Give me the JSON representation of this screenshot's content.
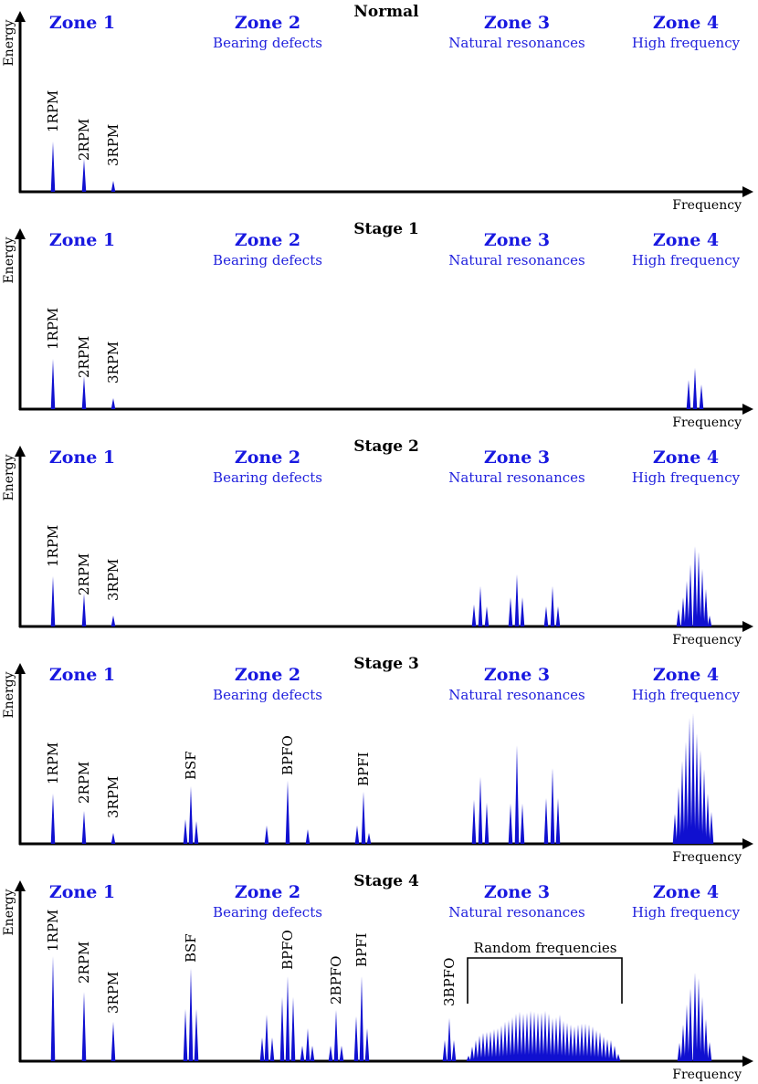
{
  "axis": {
    "x_label": "Frequency",
    "y_label": "Energy"
  },
  "zones": [
    {
      "title": "Zone 1",
      "subtitle": ""
    },
    {
      "title": "Zone 2",
      "subtitle": "Bearing defects"
    },
    {
      "title": "Zone 3",
      "subtitle": "Natural resonances"
    },
    {
      "title": "Zone 4",
      "subtitle": "High frequency"
    }
  ],
  "panels": [
    {
      "title": "Normal",
      "labels": [
        "1RPM",
        "2RPM",
        "3RPM"
      ],
      "peaks": [
        [
          58,
          0.55
        ],
        [
          92,
          0.36
        ],
        [
          124,
          0.12
        ]
      ]
    },
    {
      "title": "Stage 1",
      "labels": [
        "1RPM",
        "2RPM",
        "3RPM"
      ],
      "peaks": [
        [
          58,
          0.55
        ],
        [
          92,
          0.36
        ],
        [
          124,
          0.12
        ],
        [
          754,
          0.32
        ],
        [
          761,
          0.45
        ],
        [
          768,
          0.27
        ]
      ]
    },
    {
      "title": "Stage 2",
      "labels": [
        "1RPM",
        "2RPM",
        "3RPM"
      ],
      "peaks": [
        [
          58,
          0.55
        ],
        [
          92,
          0.36
        ],
        [
          124,
          0.12
        ],
        [
          519,
          0.24
        ],
        [
          526,
          0.44
        ],
        [
          533,
          0.22
        ],
        [
          559,
          0.32
        ],
        [
          566,
          0.57
        ],
        [
          572,
          0.32
        ],
        [
          598,
          0.22
        ],
        [
          605,
          0.44
        ],
        [
          611,
          0.22
        ],
        [
          743,
          0.19
        ],
        [
          748,
          0.32
        ],
        [
          752,
          0.5
        ],
        [
          756,
          0.68
        ],
        [
          761,
          0.88
        ],
        [
          765,
          0.82
        ],
        [
          769,
          0.63
        ],
        [
          773,
          0.41
        ],
        [
          777,
          0.12
        ]
      ]
    },
    {
      "title": "Stage 3",
      "labels": [
        "1RPM",
        "2RPM",
        "3RPM",
        "BSF",
        "BPFO",
        "BPFI"
      ],
      "peaks": [
        [
          58,
          0.55
        ],
        [
          92,
          0.36
        ],
        [
          124,
          0.12
        ],
        [
          203,
          0.27
        ],
        [
          209,
          0.63
        ],
        [
          215,
          0.25
        ],
        [
          292,
          0.2
        ],
        [
          315,
          0.69
        ],
        [
          337,
          0.16
        ],
        [
          391,
          0.2
        ],
        [
          398,
          0.57
        ],
        [
          404,
          0.12
        ],
        [
          519,
          0.48
        ],
        [
          526,
          0.73
        ],
        [
          533,
          0.45
        ],
        [
          559,
          0.44
        ],
        [
          566,
          1.08
        ],
        [
          572,
          0.44
        ],
        [
          598,
          0.5
        ],
        [
          605,
          0.83
        ],
        [
          611,
          0.5
        ],
        [
          739,
          0.33
        ],
        [
          743,
          0.62
        ],
        [
          747,
          0.91
        ],
        [
          751,
          1.12
        ],
        [
          755,
          1.38
        ],
        [
          759,
          1.43
        ],
        [
          763,
          1.21
        ],
        [
          767,
          1.03
        ],
        [
          771,
          0.82
        ],
        [
          775,
          0.55
        ],
        [
          779,
          0.35
        ]
      ]
    },
    {
      "title": "Stage 4",
      "labels": [
        "1RPM",
        "2RPM",
        "3RPM",
        "BSF",
        "BPFO",
        "2BPFO",
        "BPFI",
        "3BPFO"
      ],
      "bracket_label": "Random frequencies",
      "peaks": [
        [
          58,
          1.15
        ],
        [
          92,
          0.76
        ],
        [
          124,
          0.43
        ],
        [
          203,
          0.57
        ],
        [
          209,
          1.02
        ],
        [
          215,
          0.57
        ],
        [
          287,
          0.26
        ],
        [
          292,
          0.51
        ],
        [
          298,
          0.26
        ],
        [
          309,
          0.7
        ],
        [
          315,
          0.93
        ],
        [
          321,
          0.7
        ],
        [
          331,
          0.17
        ],
        [
          337,
          0.36
        ],
        [
          342,
          0.17
        ],
        [
          362,
          0.17
        ],
        [
          368,
          0.56
        ],
        [
          374,
          0.17
        ],
        [
          390,
          0.49
        ],
        [
          396,
          0.93
        ],
        [
          402,
          0.36
        ],
        [
          487,
          0.23
        ],
        [
          492,
          0.47
        ],
        [
          497,
          0.23
        ],
        [
          513,
          0.06
        ],
        [
          517,
          0.16
        ],
        [
          521,
          0.23
        ],
        [
          525,
          0.28
        ],
        [
          529,
          0.31
        ],
        [
          533,
          0.32
        ],
        [
          537,
          0.33
        ],
        [
          541,
          0.35
        ],
        [
          545,
          0.36
        ],
        [
          549,
          0.39
        ],
        [
          553,
          0.43
        ],
        [
          557,
          0.45
        ],
        [
          561,
          0.48
        ],
        [
          565,
          0.52
        ],
        [
          569,
          0.54
        ],
        [
          573,
          0.52
        ],
        [
          577,
          0.53
        ],
        [
          581,
          0.55
        ],
        [
          585,
          0.54
        ],
        [
          589,
          0.53
        ],
        [
          593,
          0.53
        ],
        [
          597,
          0.55
        ],
        [
          601,
          0.52
        ],
        [
          605,
          0.47
        ],
        [
          609,
          0.48
        ],
        [
          613,
          0.51
        ],
        [
          617,
          0.44
        ],
        [
          621,
          0.42
        ],
        [
          625,
          0.4
        ],
        [
          629,
          0.38
        ],
        [
          633,
          0.4
        ],
        [
          637,
          0.41
        ],
        [
          641,
          0.41
        ],
        [
          645,
          0.4
        ],
        [
          649,
          0.38
        ],
        [
          653,
          0.34
        ],
        [
          657,
          0.32
        ],
        [
          661,
          0.27
        ],
        [
          665,
          0.24
        ],
        [
          669,
          0.23
        ],
        [
          673,
          0.17
        ],
        [
          677,
          0.08
        ],
        [
          744,
          0.2
        ],
        [
          748,
          0.4
        ],
        [
          752,
          0.62
        ],
        [
          756,
          0.8
        ],
        [
          761,
          0.97
        ],
        [
          765,
          0.91
        ],
        [
          769,
          0.7
        ],
        [
          773,
          0.46
        ],
        [
          777,
          0.21
        ]
      ]
    }
  ]
}
